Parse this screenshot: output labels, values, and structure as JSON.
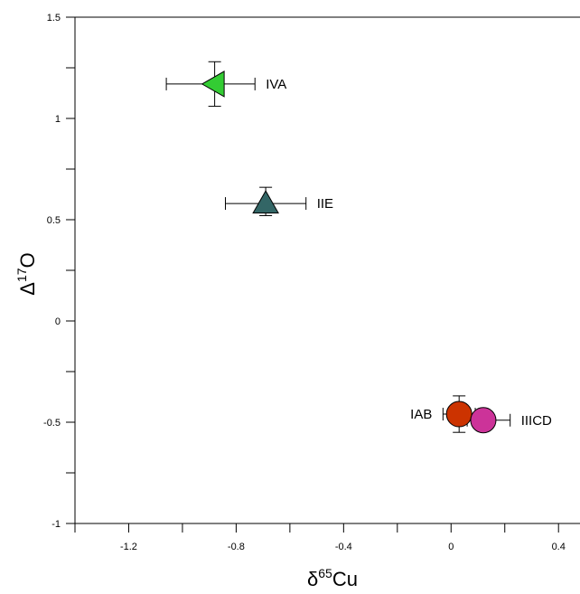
{
  "chart_data": {
    "type": "scatter",
    "title": "",
    "xlabel": {
      "prefix": "δ",
      "sup": "65",
      "base": "Cu"
    },
    "ylabel": {
      "prefix": "Δ",
      "sup": "17",
      "base": "O"
    },
    "xlim": [
      -1.4,
      0.48
    ],
    "ylim": [
      -1,
      1.5
    ],
    "xticks": [
      -1.2,
      -0.8,
      -0.4,
      0,
      0.4
    ],
    "xtick_labels": [
      "-1.2",
      "-0.8",
      "-0.4",
      "0",
      "0.4"
    ],
    "yticks": [
      -1,
      -0.5,
      0,
      0.5,
      1,
      1.5
    ],
    "ytick_labels": [
      "-1",
      "-0.5",
      "0",
      "0.5",
      "1",
      "1.5"
    ],
    "grid": false,
    "points": [
      {
        "name": "IVA",
        "x": -0.88,
        "y": 1.17,
        "xerr_low": 0.18,
        "xerr_high": 0.15,
        "yerr_low": 0.11,
        "yerr_high": 0.11,
        "marker": "triangle-left",
        "color": "#33cc33"
      },
      {
        "name": "IIE",
        "x": -0.69,
        "y": 0.58,
        "xerr_low": 0.15,
        "xerr_high": 0.15,
        "yerr_low": 0.06,
        "yerr_high": 0.08,
        "marker": "triangle-up",
        "color": "#336666"
      },
      {
        "name": "IAB",
        "x": 0.03,
        "y": -0.46,
        "xerr_low": 0.06,
        "xerr_high": 0.06,
        "yerr_low": 0.09,
        "yerr_high": 0.09,
        "marker": "circle",
        "color": "#cc3300"
      },
      {
        "name": "IIICD",
        "x": 0.12,
        "y": -0.49,
        "xerr_low": 0.06,
        "xerr_high": 0.1,
        "yerr_low": 0.0,
        "yerr_high": 0.0,
        "marker": "circle",
        "color": "#cc3399"
      }
    ]
  }
}
